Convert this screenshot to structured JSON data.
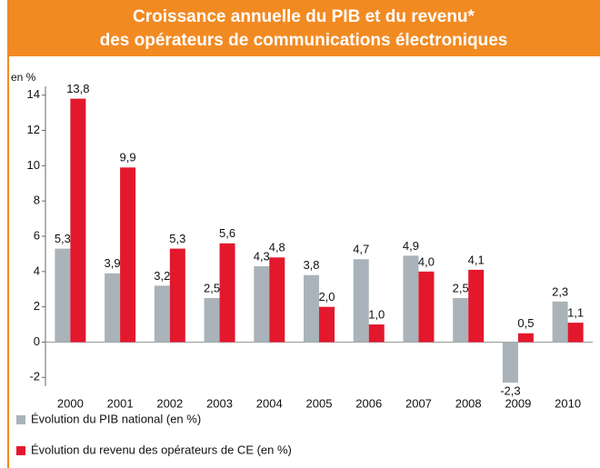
{
  "chart_data": {
    "type": "bar",
    "title": [
      "Croissance annuelle du PIB et du revenu*",
      "des opérateurs de communications électroniques"
    ],
    "y_label": "en %",
    "categories": [
      "2000",
      "2001",
      "2002",
      "2003",
      "2004",
      "2005",
      "2006",
      "2007",
      "2008",
      "2009",
      "2010"
    ],
    "series": [
      {
        "name": "Évolution du PIB national (en %)",
        "color": "#a9b3b9",
        "values": [
          5.3,
          3.9,
          3.2,
          2.5,
          4.3,
          3.8,
          4.7,
          4.9,
          2.5,
          -2.3,
          2.3
        ],
        "value_labels": [
          "5,3",
          "3,9",
          "3,2",
          "2,5",
          "4,3",
          "3,8",
          "4,7",
          "4,9",
          "2,5",
          "-2,3",
          "2,3"
        ]
      },
      {
        "name": "Évolution du revenu des opérateurs de CE (en %)",
        "color": "#e3182d",
        "values": [
          13.8,
          9.9,
          5.3,
          5.6,
          4.8,
          2.0,
          1.0,
          4.0,
          4.1,
          0.5,
          1.1
        ],
        "value_labels": [
          "13,8",
          "9,9",
          "5,3",
          "5,6",
          "4,8",
          "2,0",
          "1,0",
          "4,0",
          "4,1",
          "0,5",
          "1,1"
        ]
      }
    ],
    "ylim": [
      -2.5,
      14.5
    ],
    "yticks": [
      -2,
      0,
      2,
      4,
      6,
      8,
      10,
      12,
      14
    ],
    "grid": false
  }
}
